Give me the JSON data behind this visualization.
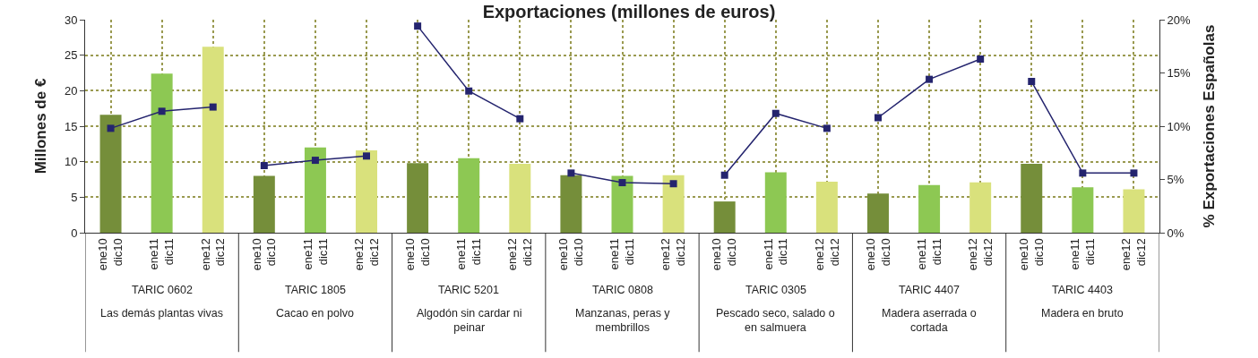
{
  "chart_data": {
    "type": "bar",
    "title": "Exportaciones (millones de euros)",
    "ylabel": "Millones de €",
    "y2label": "% Exportaciones Españolas",
    "categories": [
      "ene10 dic10",
      "ene11 dic11",
      "ene12 dic12",
      "ene10 dic10",
      "ene11 dic11",
      "ene12 dic12",
      "ene10 dic10",
      "ene11 dic11",
      "ene12 dic12",
      "ene10 dic10",
      "ene11 dic11",
      "ene12 dic12",
      "ene10 dic10",
      "ene11 dic11",
      "ene12 dic12",
      "ene10 dic10",
      "ene11 dic11",
      "ene12 dic12",
      "ene10 dic10",
      "ene11 dic11",
      "ene12 dic12"
    ],
    "values": [
      16.6,
      22.4,
      26.2,
      8.0,
      12.0,
      11.6,
      9.8,
      10.5,
      9.7,
      8.1,
      8.0,
      8.1,
      4.4,
      8.5,
      7.2,
      5.5,
      6.7,
      7.1,
      9.7,
      6.4,
      6.1
    ],
    "colors": [
      "#758e3a",
      "#8dc853",
      "#d9e17c",
      "#758e3a",
      "#8dc853",
      "#d9e17c",
      "#758e3a",
      "#8dc853",
      "#d9e17c",
      "#758e3a",
      "#8dc853",
      "#d9e17c",
      "#758e3a",
      "#8dc853",
      "#d9e17c",
      "#758e3a",
      "#8dc853",
      "#d9e17c",
      "#758e3a",
      "#8dc853",
      "#d9e17c"
    ],
    "series": [
      {
        "type": "line",
        "axis": "y2",
        "color": "#24246e",
        "values": [
          9.8,
          11.4,
          11.8,
          null,
          null,
          null,
          null,
          null,
          null,
          null,
          null,
          null,
          null,
          null,
          null,
          null,
          null,
          null,
          null,
          null,
          null
        ]
      },
      {
        "type": "line",
        "axis": "y2",
        "color": "#24246e",
        "values": [
          null,
          null,
          null,
          6.3,
          6.8,
          7.2,
          null,
          null,
          null,
          null,
          null,
          null,
          null,
          null,
          null,
          null,
          null,
          null,
          null,
          null,
          null
        ]
      },
      {
        "type": "line",
        "axis": "y2",
        "color": "#24246e",
        "values": [
          null,
          null,
          null,
          null,
          null,
          null,
          19.4,
          13.3,
          10.7,
          null,
          null,
          null,
          null,
          null,
          null,
          null,
          null,
          null,
          null,
          null,
          null
        ]
      },
      {
        "type": "line",
        "axis": "y2",
        "color": "#24246e",
        "values": [
          null,
          null,
          null,
          null,
          null,
          null,
          null,
          null,
          null,
          5.6,
          4.7,
          4.6,
          null,
          null,
          null,
          null,
          null,
          null,
          null,
          null,
          null
        ]
      },
      {
        "type": "line",
        "axis": "y2",
        "color": "#24246e",
        "values": [
          null,
          null,
          null,
          null,
          null,
          null,
          null,
          null,
          null,
          null,
          null,
          null,
          5.4,
          11.2,
          9.8,
          null,
          null,
          null,
          null,
          null,
          null
        ]
      },
      {
        "type": "line",
        "axis": "y2",
        "color": "#24246e",
        "values": [
          null,
          null,
          null,
          null,
          null,
          null,
          null,
          null,
          null,
          null,
          null,
          null,
          null,
          null,
          null,
          10.8,
          14.4,
          16.3,
          null,
          null,
          null
        ]
      },
      {
        "type": "line",
        "axis": "y2",
        "color": "#24246e",
        "values": [
          null,
          null,
          null,
          null,
          null,
          null,
          null,
          null,
          null,
          null,
          null,
          null,
          null,
          null,
          null,
          null,
          null,
          null,
          14.2,
          5.6,
          5.6
        ]
      }
    ],
    "annotations": [
      "TARIC 0602",
      "Las demás plantas vivas",
      "TARIC 1805",
      "Cacao en polvo",
      "TARIC 5201",
      "Algodón sin cardar ni peinar",
      "TARIC 0808",
      "Manzanas, peras y membrillos",
      "TARIC 0305",
      "Pescado seco, salado o en salmuera",
      "TARIC 4407",
      "Madera aserrada o cortada",
      "TARIC 4403",
      "Madera en bruto"
    ],
    "ylim": [
      0,
      30
    ],
    "yticks": [
      0,
      5,
      10,
      15,
      20,
      25,
      30
    ],
    "y2lim": [
      0,
      20
    ],
    "y2ticks": [
      {
        "value": 0,
        "label": "0%"
      },
      {
        "value": 5,
        "label": "5%"
      },
      {
        "value": 10,
        "label": "10%"
      },
      {
        "value": 15,
        "label": "15%"
      },
      {
        "value": 20,
        "label": "20%"
      }
    ],
    "grid": true,
    "marker": "square"
  }
}
